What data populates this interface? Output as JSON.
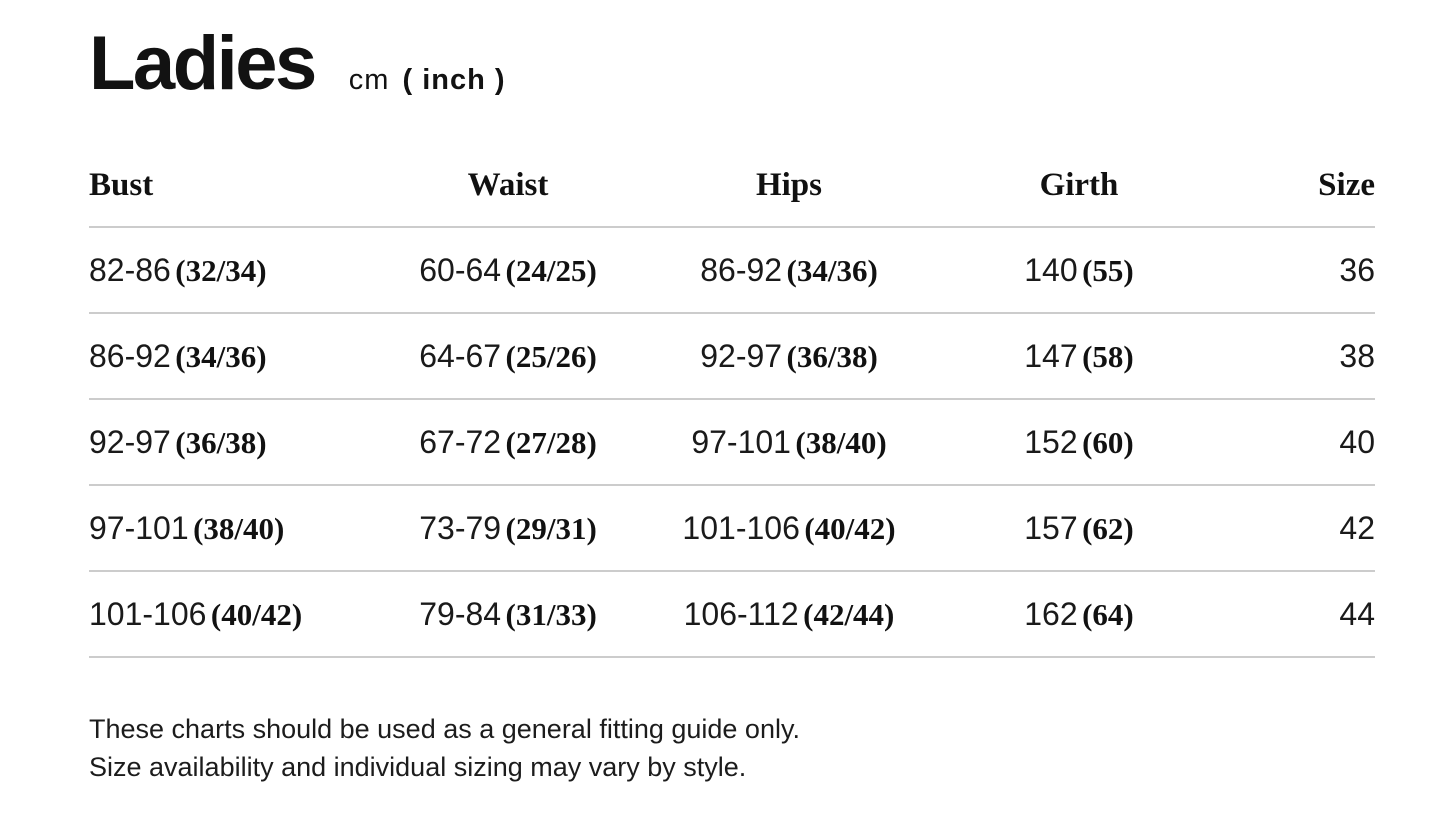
{
  "header": {
    "title": "Ladies",
    "unit_cm": "cm",
    "unit_inch": "( inch )"
  },
  "table": {
    "columns": [
      "Bust",
      "Waist",
      "Hips",
      "Girth",
      "Size"
    ],
    "rows": [
      {
        "bust": {
          "cm": "82-86",
          "inch": "(32/34)"
        },
        "waist": {
          "cm": "60-64",
          "inch": "(24/25)"
        },
        "hips": {
          "cm": "86-92",
          "inch": "(34/36)"
        },
        "girth": {
          "cm": "140",
          "inch": "(55)"
        },
        "size": "36"
      },
      {
        "bust": {
          "cm": "86-92",
          "inch": "(34/36)"
        },
        "waist": {
          "cm": "64-67",
          "inch": "(25/26)"
        },
        "hips": {
          "cm": "92-97",
          "inch": "(36/38)"
        },
        "girth": {
          "cm": "147",
          "inch": "(58)"
        },
        "size": "38"
      },
      {
        "bust": {
          "cm": "92-97",
          "inch": "(36/38)"
        },
        "waist": {
          "cm": "67-72",
          "inch": "(27/28)"
        },
        "hips": {
          "cm": "97-101",
          "inch": "(38/40)"
        },
        "girth": {
          "cm": "152",
          "inch": "(60)"
        },
        "size": "40"
      },
      {
        "bust": {
          "cm": "97-101",
          "inch": "(38/40)"
        },
        "waist": {
          "cm": "73-79",
          "inch": "(29/31)"
        },
        "hips": {
          "cm": "101-106",
          "inch": "(40/42)"
        },
        "girth": {
          "cm": "157",
          "inch": "(62)"
        },
        "size": "42"
      },
      {
        "bust": {
          "cm": "101-106",
          "inch": "(40/42)"
        },
        "waist": {
          "cm": "79-84",
          "inch": "(31/33)"
        },
        "hips": {
          "cm": "106-112",
          "inch": "(42/44)"
        },
        "girth": {
          "cm": "162",
          "inch": "(64)"
        },
        "size": "44"
      }
    ]
  },
  "footer": {
    "line1": "These charts should be used as a general fitting guide only.",
    "line2": "Size availability and individual sizing may vary by style."
  },
  "colors": {
    "text": "#121212",
    "divider": "#cccccc",
    "background": "#ffffff"
  }
}
